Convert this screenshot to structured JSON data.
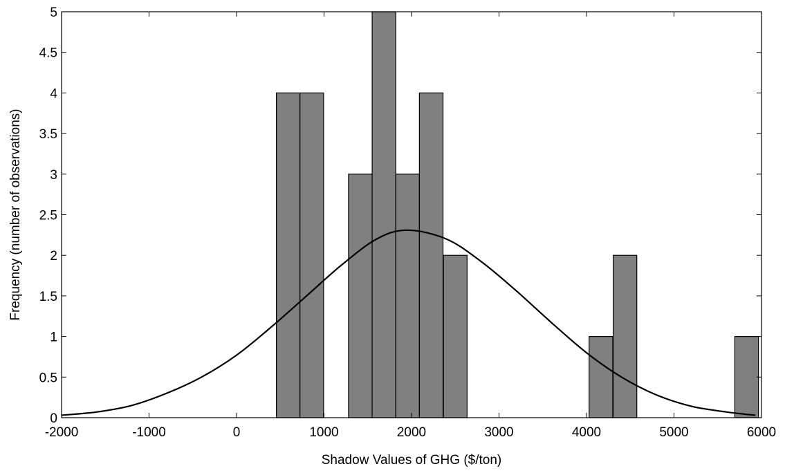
{
  "chart_data": {
    "type": "bar",
    "title": "",
    "xlabel": "Shadow Values of GHG ($/ton)",
    "ylabel": "Frequency (number of observations)",
    "xlim": [
      -2000,
      6000
    ],
    "ylim": [
      0,
      5
    ],
    "xticks": [
      "-2000",
      "-1000",
      "0",
      "1000",
      "2000",
      "3000",
      "4000",
      "5000",
      "6000"
    ],
    "yticks": [
      "0",
      "0.5",
      "1",
      "1.5",
      "2",
      "2.5",
      "3",
      "3.5",
      "4",
      "4.5",
      "5"
    ],
    "bin_width": 270,
    "bins": [
      {
        "x": 590,
        "count": 4
      },
      {
        "x": 860,
        "count": 4
      },
      {
        "x": 1415,
        "count": 3
      },
      {
        "x": 1685,
        "count": 5
      },
      {
        "x": 1955,
        "count": 3
      },
      {
        "x": 2225,
        "count": 4
      },
      {
        "x": 2500,
        "count": 2
      },
      {
        "x": 4165,
        "count": 1
      },
      {
        "x": 4440,
        "count": 2
      },
      {
        "x": 5830,
        "count": 1
      }
    ],
    "fit_curve": {
      "type": "normal",
      "x": [
        -2000,
        -1600,
        -1200,
        -800,
        -400,
        0,
        400,
        800,
        1200,
        1600,
        1950,
        2400,
        2800,
        3200,
        3600,
        4000,
        4400,
        4800,
        5200,
        5600,
        5930
      ],
      "y": [
        0.03,
        0.07,
        0.15,
        0.3,
        0.5,
        0.77,
        1.12,
        1.5,
        1.88,
        2.2,
        2.31,
        2.2,
        1.92,
        1.56,
        1.17,
        0.8,
        0.5,
        0.28,
        0.14,
        0.07,
        0.03
      ]
    },
    "colors": {
      "bar_fill": "#808080",
      "bar_edge": "#000000",
      "curve": "#000000"
    },
    "grid": false
  }
}
